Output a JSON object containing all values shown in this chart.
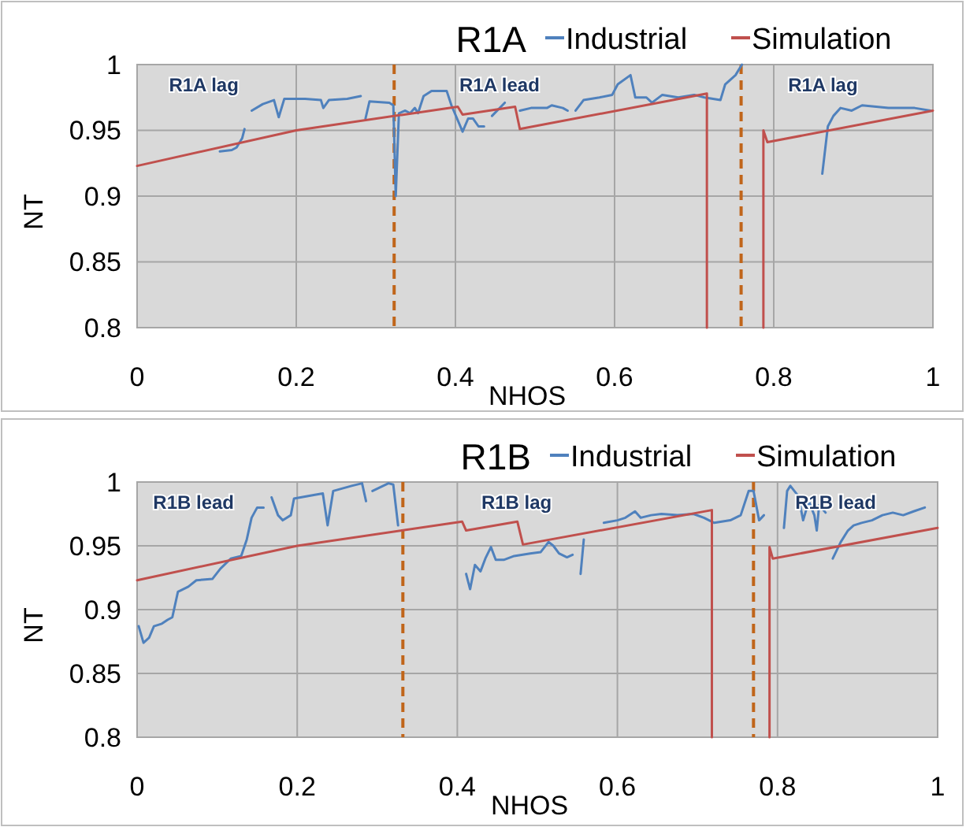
{
  "chart_data": [
    {
      "type": "line",
      "title": "R1A",
      "xlabel": "NHOS",
      "ylabel": "NT",
      "xlim": [
        0,
        1
      ],
      "ylim": [
        0.8,
        1
      ],
      "xticks": [
        0,
        0.2,
        0.4,
        0.6,
        0.8,
        1
      ],
      "yticks": [
        0.8,
        0.85,
        0.9,
        0.95,
        1
      ],
      "grid": true,
      "legend": "top right",
      "line_style": "solid",
      "series": [
        {
          "name": "Industrial",
          "color": "#4f81bd",
          "x": [
            0.104,
            0.119,
            0.125,
            0.132,
            0.135,
            0.14,
            0.144,
            0.158,
            0.172,
            0.178,
            0.185,
            0.211,
            0.231,
            0.234,
            0.241,
            0.264,
            0.281,
            0.284,
            0.287,
            0.292,
            0.317,
            0.322,
            0.325,
            0.329,
            0.337,
            0.343,
            0.349,
            0.353,
            0.36,
            0.37,
            0.389,
            0.395,
            0.409,
            0.416,
            0.422,
            0.429,
            0.436,
            0.44,
            0.446,
            0.462,
            0.47,
            0.481,
            0.495,
            0.515,
            0.521,
            0.535,
            0.541,
            0.546,
            0.551,
            0.561,
            0.581,
            0.597,
            0.604,
            0.62,
            0.626,
            0.64,
            0.647,
            0.66,
            0.68,
            0.7,
            0.713,
            0.733,
            0.739,
            0.752,
            0.76,
            0.8,
            0.861,
            0.868,
            0.875,
            0.884,
            0.898,
            0.911,
            0.944,
            0.977,
            0.997
          ],
          "values": [
            0.934,
            0.935,
            0.937,
            0.944,
            0.951,
            null,
            0.965,
            0.97,
            0.973,
            0.96,
            0.974,
            0.974,
            0.973,
            0.967,
            0.973,
            0.974,
            0.976,
            null,
            0.959,
            0.972,
            0.971,
            0.969,
            0.9,
            0.963,
            0.965,
            0.963,
            0.967,
            0.963,
            0.976,
            0.98,
            0.98,
            0.969,
            0.949,
            0.959,
            0.959,
            0.953,
            0.953,
            null,
            0.961,
            0.971,
            null,
            0.965,
            0.967,
            0.967,
            0.969,
            0.967,
            0.965,
            null,
            0.965,
            0.973,
            0.975,
            0.977,
            0.985,
            0.992,
            0.975,
            0.975,
            0.971,
            0.977,
            0.975,
            0.977,
            0.975,
            0.973,
            0.985,
            0.992,
            1.0,
            null,
            0.917,
            0.953,
            0.961,
            0.967,
            0.965,
            0.969,
            0.967,
            0.967,
            0.965
          ]
        },
        {
          "name": "Simulation",
          "color": "#c0504d",
          "x": [
            0,
            0.2,
            0.403,
            0.409,
            0.475,
            0.481,
            0.716,
            0.716,
            0.75,
            0.787,
            0.787,
            0.792,
            1.0
          ],
          "values": [
            0.923,
            0.95,
            0.968,
            0.962,
            0.968,
            0.951,
            0.978,
            0.8,
            null,
            0.8,
            0.95,
            0.941,
            0.965
          ]
        }
      ],
      "ref_lines": [
        {
          "axis": "x",
          "value": 0.323,
          "color": "#c0651a",
          "line_style": "dashed"
        },
        {
          "axis": "x",
          "value": 0.759,
          "color": "#c0651a",
          "line_style": "dashed"
        }
      ],
      "annotations": [
        "R1A lag",
        "R1A lead",
        "R1A lag"
      ]
    },
    {
      "type": "line",
      "title": "R1B",
      "xlabel": "NHOS",
      "ylabel": "NT",
      "xlim": [
        0,
        1
      ],
      "ylim": [
        0.8,
        1
      ],
      "xticks": [
        0,
        0.2,
        0.4,
        0.6,
        0.8,
        1
      ],
      "yticks": [
        0.8,
        0.85,
        0.9,
        0.95,
        1
      ],
      "grid": true,
      "legend": "top right",
      "line_style": "solid",
      "series": [
        {
          "name": "Industrial",
          "color": "#4f81bd",
          "x": [
            0.002,
            0.008,
            0.015,
            0.021,
            0.031,
            0.038,
            0.044,
            0.051,
            0.064,
            0.074,
            0.094,
            0.104,
            0.117,
            0.13,
            0.137,
            0.143,
            0.15,
            0.158,
            0.163,
            0.168,
            0.176,
            0.182,
            0.192,
            0.196,
            0.222,
            0.232,
            0.238,
            0.245,
            0.268,
            0.281,
            0.286,
            0.29,
            0.294,
            0.314,
            0.32,
            0.326,
            0.37,
            0.411,
            0.416,
            0.422,
            0.429,
            0.435,
            0.442,
            0.448,
            0.458,
            0.471,
            0.491,
            0.504,
            0.514,
            0.52,
            0.527,
            0.537,
            0.544,
            0.549,
            0.554,
            0.558,
            0.57,
            0.583,
            0.6,
            0.61,
            0.622,
            0.629,
            0.642,
            0.655,
            0.675,
            0.695,
            0.708,
            0.721,
            0.741,
            0.754,
            0.764,
            0.77,
            0.777,
            0.783,
            0.795,
            0.808,
            0.812,
            0.816,
            0.826,
            0.832,
            0.839,
            0.846,
            0.849,
            0.852,
            0.86,
            0.866,
            0.869,
            0.879,
            0.888,
            0.895,
            0.905,
            0.918,
            0.931,
            0.944,
            0.957,
            0.97,
            0.984
          ],
          "values": [
            0.887,
            0.874,
            0.878,
            0.887,
            0.889,
            0.892,
            0.894,
            0.914,
            0.918,
            0.923,
            0.924,
            0.932,
            0.94,
            0.942,
            0.955,
            0.972,
            0.98,
            0.98,
            null,
            0.988,
            0.974,
            0.97,
            0.974,
            0.987,
            0.99,
            0.991,
            0.966,
            0.993,
            0.997,
            0.999,
            0.985,
            null,
            0.993,
            0.999,
            0.998,
            0.966,
            null,
            0.928,
            0.916,
            0.935,
            0.93,
            0.94,
            0.949,
            0.939,
            0.939,
            0.942,
            0.944,
            0.945,
            0.953,
            0.95,
            0.944,
            0.941,
            0.943,
            null,
            0.928,
            0.955,
            null,
            0.968,
            0.97,
            0.972,
            0.977,
            0.972,
            0.974,
            0.975,
            0.974,
            0.975,
            0.972,
            0.968,
            0.97,
            0.974,
            0.993,
            0.993,
            0.97,
            0.974,
            null,
            0.964,
            0.993,
            0.997,
            0.989,
            0.97,
            0.985,
            0.974,
            0.962,
            0.982,
            0.976,
            null,
            0.94,
            0.953,
            0.962,
            0.966,
            0.968,
            0.97,
            0.974,
            0.976,
            0.974,
            0.977,
            0.98
          ]
        },
        {
          "name": "Simulation",
          "color": "#c0504d",
          "x": [
            0,
            0.2,
            0.406,
            0.411,
            0.475,
            0.482,
            0.718,
            0.718,
            0.75,
            0.79,
            0.79,
            0.794,
            1.0
          ],
          "values": [
            0.923,
            0.95,
            0.969,
            0.962,
            0.969,
            0.951,
            0.978,
            0.8,
            null,
            0.8,
            0.949,
            0.94,
            0.964
          ]
        }
      ],
      "ref_lines": [
        {
          "axis": "x",
          "value": 0.332,
          "color": "#c0651a",
          "line_style": "dashed"
        },
        {
          "axis": "x",
          "value": 0.77,
          "color": "#c0651a",
          "line_style": "dashed"
        }
      ],
      "annotations": [
        "R1B lead",
        "R1B lag",
        "R1B lead"
      ]
    }
  ]
}
